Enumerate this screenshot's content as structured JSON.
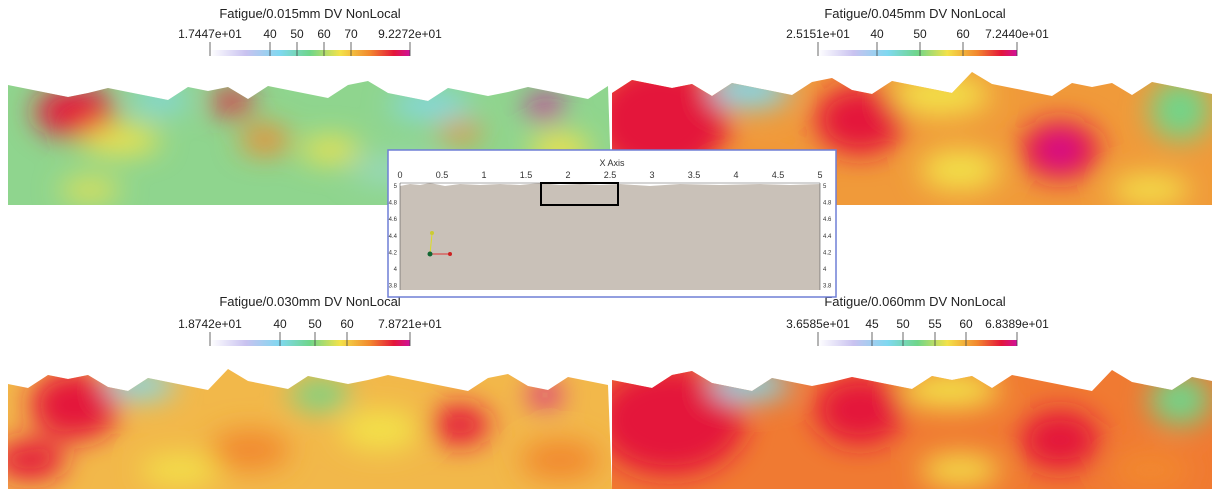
{
  "panels": [
    {
      "title": "Fatigue/0.015mm DV NonLocal",
      "ticks": [
        "1.7447e+01",
        "40",
        "50",
        "60",
        "70",
        "9.2272e+01"
      ]
    },
    {
      "title": "Fatigue/0.045mm DV NonLocal",
      "ticks": [
        "2.5151e+01",
        "40",
        "50",
        "60",
        "7.2440e+01"
      ]
    },
    {
      "title": "Fatigue/0.030mm DV NonLocal",
      "ticks": [
        "1.8742e+01",
        "40",
        "50",
        "60",
        "7.8721e+01"
      ]
    },
    {
      "title": "Fatigue/0.060mm DV NonLocal",
      "ticks": [
        "3.6585e+01",
        "45",
        "50",
        "55",
        "60",
        "6.8389e+01"
      ]
    }
  ],
  "inset": {
    "x_axis_title": "X Axis",
    "x_ticks": [
      "0",
      "0.5",
      "1",
      "1.5",
      "2",
      "2.5",
      "3",
      "3.5",
      "4",
      "4.5",
      "5"
    ],
    "y_ticks": [
      "5",
      "4.8",
      "4.6",
      "4.4",
      "4.2",
      "4",
      "3.8"
    ]
  }
}
